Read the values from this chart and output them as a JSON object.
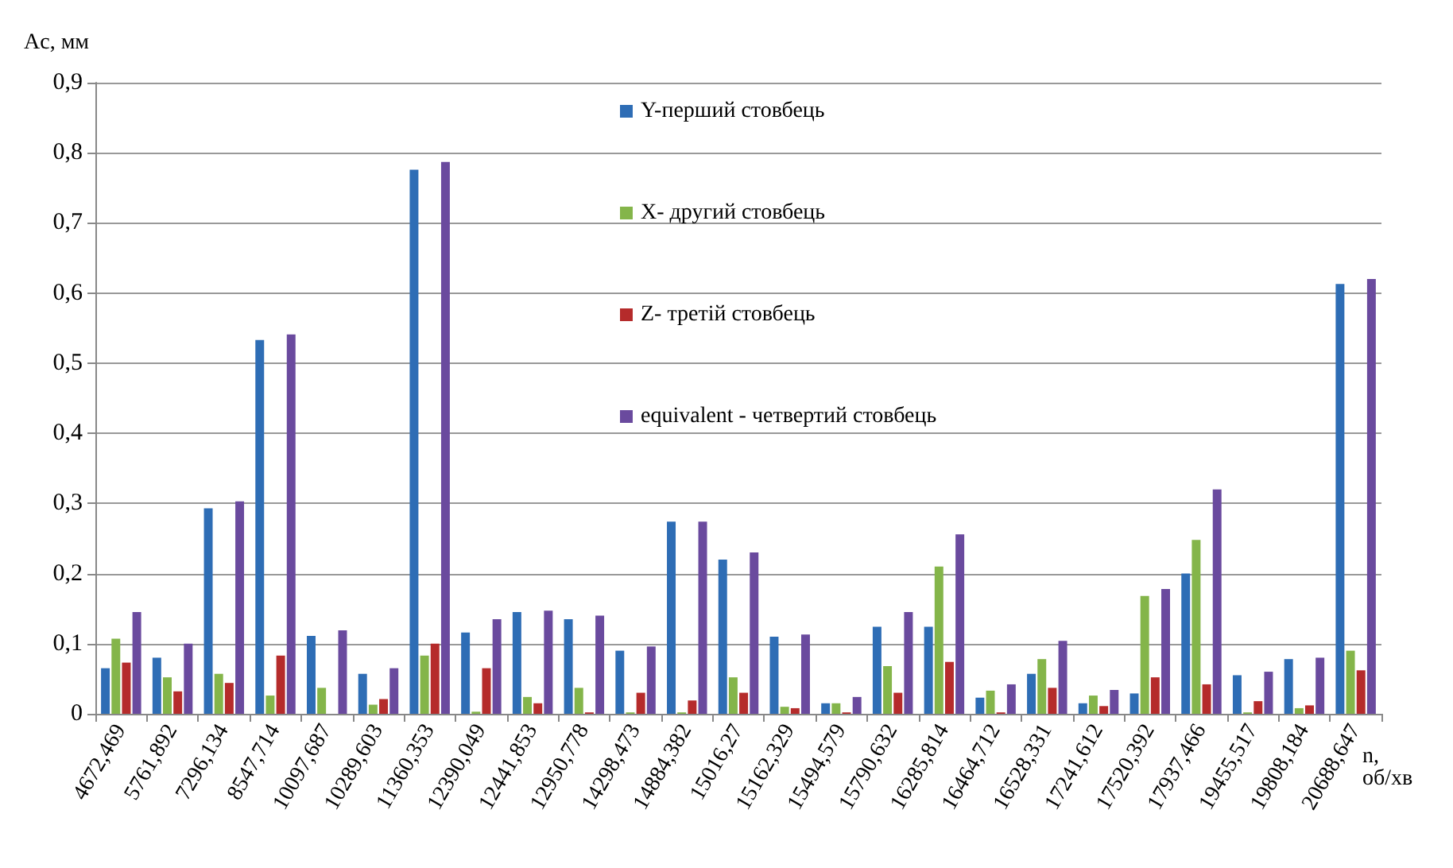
{
  "chart_data": {
    "type": "bar",
    "ylabel": "Ac, мм",
    "xlabel": "n,\nоб/хв",
    "categories": [
      "4672,469",
      "5761,892",
      "7296,134",
      "8547,714",
      "10097,687",
      "10289,603",
      "11360,353",
      "12390,049",
      "12441,853",
      "12950,778",
      "14298,473",
      "14884,382",
      "15016,27",
      "15162,329",
      "15494,579",
      "15790,632",
      "16285,814",
      "16464,712",
      "16528,331",
      "17241,612",
      "17520,392",
      "17937,466",
      "19455,517",
      "19808,184",
      "20688,647"
    ],
    "series": [
      {
        "name": "Y-перший стовбець",
        "color": "#2e6db5",
        "values": [
          0.065,
          0.08,
          0.293,
          0.533,
          0.111,
          0.057,
          0.776,
          0.116,
          0.145,
          0.135,
          0.09,
          0.274,
          0.22,
          0.11,
          0.015,
          0.124,
          0.124,
          0.023,
          0.057,
          0.015,
          0.029,
          0.2,
          0.055,
          0.078,
          0.613
        ]
      },
      {
        "name": "X- другий стовбець",
        "color": "#84b54a",
        "values": [
          0.107,
          0.052,
          0.057,
          0.026,
          0.037,
          0.013,
          0.083,
          0.003,
          0.024,
          0.037,
          0.002,
          0.002,
          0.052,
          0.01,
          0.015,
          0.068,
          0.21,
          0.033,
          0.078,
          0.026,
          0.168,
          0.248,
          0.002,
          0.008,
          0.09
        ]
      },
      {
        "name": "Z- третій стовбець",
        "color": "#b52b2b",
        "values": [
          0.073,
          0.032,
          0.044,
          0.083,
          0,
          0.021,
          0.1,
          0.065,
          0.015,
          0.002,
          0.03,
          0.019,
          0.03,
          0.008,
          0.002,
          0.03,
          0.074,
          0.002,
          0.037,
          0.011,
          0.052,
          0.042,
          0.018,
          0.012,
          0.062
        ]
      },
      {
        "name": "equivalent - четвертий стовбець",
        "color": "#6a4a9e",
        "values": [
          0.145,
          0.1,
          0.303,
          0.541,
          0.119,
          0.065,
          0.787,
          0.135,
          0.147,
          0.14,
          0.096,
          0.274,
          0.23,
          0.113,
          0.024,
          0.145,
          0.256,
          0.042,
          0.104,
          0.034,
          0.178,
          0.32,
          0.06,
          0.08,
          0.62
        ]
      }
    ],
    "ylim": [
      0,
      0.9
    ],
    "yticks": [
      {
        "value": 0,
        "label": "0"
      },
      {
        "value": 0.1,
        "label": "0,1"
      },
      {
        "value": 0.2,
        "label": "0,2"
      },
      {
        "value": 0.3,
        "label": "0,3"
      },
      {
        "value": 0.4,
        "label": "0,4"
      },
      {
        "value": 0.5,
        "label": "0,5"
      },
      {
        "value": 0.6,
        "label": "0,6"
      },
      {
        "value": 0.7,
        "label": "0,7"
      },
      {
        "value": 0.8,
        "label": "0,8"
      },
      {
        "value": 0.9,
        "label": "0,9"
      }
    ],
    "grid": "y",
    "legend": "top"
  }
}
